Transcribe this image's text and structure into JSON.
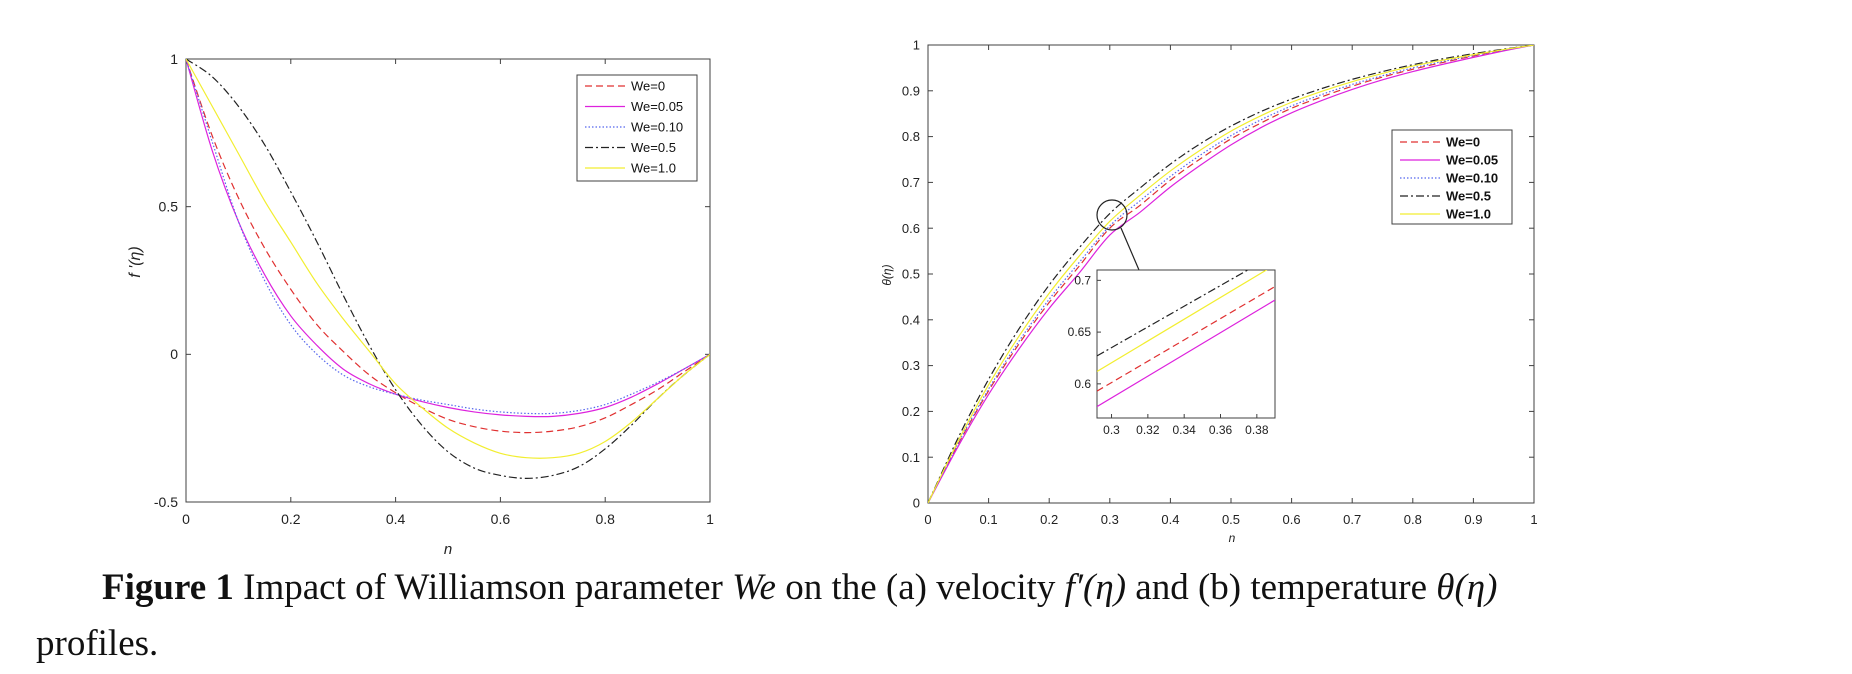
{
  "caption": {
    "bold": "Figure 1",
    "part1": " Impact of Williamson parameter ",
    "param": "We",
    "part2": " on the (a) velocity  ",
    "sym1": "f′(η)",
    "part3": " and (b) temperature ",
    "sym2": "θ(η)",
    "part4": "",
    "line2": "profiles."
  },
  "chart_data": [
    {
      "type": "line",
      "ylabel": "f '(η)",
      "xlabel": "n",
      "xlim": [
        0,
        1
      ],
      "ylim": [
        -0.5,
        1
      ],
      "xticks": [
        "0",
        "0.2",
        "0.4",
        "0.6",
        "0.8",
        "1"
      ],
      "yticks": [
        "-0.5",
        "0",
        "0.5",
        "1"
      ],
      "legend_position": "top-right",
      "series": [
        {
          "name": "We=0",
          "color": "#e03030",
          "style": "dashed",
          "x": [
            0,
            0.05,
            0.1,
            0.15,
            0.2,
            0.25,
            0.3,
            0.35,
            0.4,
            0.45,
            0.5,
            0.55,
            0.6,
            0.65,
            0.7,
            0.75,
            0.8,
            0.85,
            0.9,
            0.95,
            1
          ],
          "y": [
            1,
            0.74,
            0.53,
            0.36,
            0.22,
            0.1,
            0.01,
            -0.07,
            -0.13,
            -0.18,
            -0.22,
            -0.245,
            -0.26,
            -0.265,
            -0.26,
            -0.245,
            -0.215,
            -0.17,
            -0.12,
            -0.06,
            0
          ]
        },
        {
          "name": "We=0.05",
          "color": "#dd22dd",
          "style": "solid",
          "x": [
            0,
            0.05,
            0.1,
            0.15,
            0.2,
            0.25,
            0.3,
            0.35,
            0.4,
            0.45,
            0.5,
            0.55,
            0.6,
            0.65,
            0.7,
            0.75,
            0.8,
            0.85,
            0.9,
            0.95,
            1
          ],
          "y": [
            1,
            0.69,
            0.45,
            0.27,
            0.13,
            0.03,
            -0.05,
            -0.1,
            -0.135,
            -0.16,
            -0.18,
            -0.195,
            -0.205,
            -0.21,
            -0.21,
            -0.2,
            -0.18,
            -0.145,
            -0.1,
            -0.05,
            0
          ]
        },
        {
          "name": "We=0.10",
          "color": "#5566ee",
          "style": "dotted",
          "x": [
            0,
            0.05,
            0.1,
            0.15,
            0.2,
            0.25,
            0.3,
            0.35,
            0.4,
            0.45,
            0.5,
            0.55,
            0.6,
            0.65,
            0.7,
            0.75,
            0.8,
            0.85,
            0.9,
            0.95,
            1
          ],
          "y": [
            1,
            0.72,
            0.45,
            0.25,
            0.1,
            0.0,
            -0.07,
            -0.11,
            -0.135,
            -0.155,
            -0.17,
            -0.185,
            -0.195,
            -0.2,
            -0.2,
            -0.19,
            -0.17,
            -0.135,
            -0.095,
            -0.05,
            0
          ]
        },
        {
          "name": "We=0.5",
          "color": "#222222",
          "style": "dashdot",
          "x": [
            0,
            0.05,
            0.1,
            0.15,
            0.2,
            0.25,
            0.3,
            0.35,
            0.4,
            0.45,
            0.5,
            0.55,
            0.6,
            0.65,
            0.7,
            0.75,
            0.8,
            0.85,
            0.9,
            0.95,
            1
          ],
          "y": [
            1,
            0.94,
            0.84,
            0.71,
            0.55,
            0.38,
            0.2,
            0.03,
            -0.12,
            -0.24,
            -0.33,
            -0.385,
            -0.41,
            -0.42,
            -0.41,
            -0.38,
            -0.32,
            -0.24,
            -0.15,
            -0.07,
            0
          ]
        },
        {
          "name": "We=1.0",
          "color": "#f2ee30",
          "style": "solid",
          "x": [
            0,
            0.05,
            0.1,
            0.15,
            0.2,
            0.25,
            0.3,
            0.35,
            0.4,
            0.45,
            0.5,
            0.55,
            0.6,
            0.65,
            0.7,
            0.75,
            0.8,
            0.85,
            0.9,
            0.95,
            1
          ],
          "y": [
            1,
            0.84,
            0.68,
            0.52,
            0.38,
            0.24,
            0.12,
            0.01,
            -0.1,
            -0.18,
            -0.25,
            -0.3,
            -0.335,
            -0.35,
            -0.35,
            -0.335,
            -0.295,
            -0.23,
            -0.15,
            -0.07,
            0
          ]
        }
      ]
    },
    {
      "type": "line",
      "ylabel": "θ(η)",
      "xlabel": "n",
      "xlim": [
        0,
        1
      ],
      "ylim": [
        0,
        1
      ],
      "xticks": [
        "0",
        "0.1",
        "0.2",
        "0.3",
        "0.4",
        "0.5",
        "0.6",
        "0.7",
        "0.8",
        "0.9",
        "1"
      ],
      "yticks": [
        "0",
        "0.1",
        "0.2",
        "0.3",
        "0.4",
        "0.5",
        "0.6",
        "0.7",
        "0.8",
        "0.9",
        "1"
      ],
      "legend_position": "right",
      "series": [
        {
          "name": "We=0",
          "color": "#e03030",
          "style": "dashed",
          "x": [
            0,
            0.05,
            0.1,
            0.15,
            0.2,
            0.25,
            0.3,
            0.35,
            0.4,
            0.45,
            0.5,
            0.55,
            0.6,
            0.65,
            0.7,
            0.75,
            0.8,
            0.85,
            0.9,
            0.95,
            1
          ],
          "y": [
            0,
            0.129,
            0.245,
            0.347,
            0.438,
            0.518,
            0.6,
            0.65,
            0.705,
            0.752,
            0.795,
            0.83,
            0.862,
            0.887,
            0.91,
            0.93,
            0.947,
            0.962,
            0.976,
            0.989,
            1
          ]
        },
        {
          "name": "We=0.05",
          "color": "#dd22dd",
          "style": "solid",
          "x": [
            0,
            0.05,
            0.1,
            0.15,
            0.2,
            0.25,
            0.3,
            0.35,
            0.4,
            0.45,
            0.5,
            0.55,
            0.6,
            0.65,
            0.7,
            0.75,
            0.8,
            0.85,
            0.9,
            0.95,
            1
          ],
          "y": [
            0,
            0.124,
            0.237,
            0.336,
            0.425,
            0.503,
            0.585,
            0.635,
            0.69,
            0.738,
            0.782,
            0.82,
            0.852,
            0.879,
            0.903,
            0.924,
            0.942,
            0.958,
            0.973,
            0.987,
            1
          ]
        },
        {
          "name": "We=0.10",
          "color": "#5566ee",
          "style": "dotted",
          "x": [
            0,
            0.05,
            0.1,
            0.15,
            0.2,
            0.25,
            0.3,
            0.35,
            0.4,
            0.45,
            0.5,
            0.55,
            0.6,
            0.65,
            0.7,
            0.75,
            0.8,
            0.85,
            0.9,
            0.95,
            1
          ],
          "y": [
            0,
            0.131,
            0.249,
            0.353,
            0.445,
            0.526,
            0.605,
            0.66,
            0.713,
            0.76,
            0.802,
            0.837,
            0.867,
            0.892,
            0.914,
            0.933,
            0.95,
            0.964,
            0.977,
            0.989,
            1
          ]
        },
        {
          "name": "We=0.5",
          "color": "#222222",
          "style": "dashdot",
          "x": [
            0,
            0.05,
            0.1,
            0.15,
            0.2,
            0.25,
            0.3,
            0.35,
            0.4,
            0.45,
            0.5,
            0.55,
            0.6,
            0.65,
            0.7,
            0.75,
            0.8,
            0.85,
            0.9,
            0.95,
            1
          ],
          "y": [
            0,
            0.143,
            0.27,
            0.38,
            0.476,
            0.558,
            0.632,
            0.688,
            0.74,
            0.785,
            0.823,
            0.855,
            0.882,
            0.905,
            0.925,
            0.942,
            0.957,
            0.97,
            0.981,
            0.991,
            1
          ]
        },
        {
          "name": "We=1.0",
          "color": "#f2ee30",
          "style": "solid",
          "x": [
            0,
            0.05,
            0.1,
            0.15,
            0.2,
            0.25,
            0.3,
            0.35,
            0.4,
            0.45,
            0.5,
            0.55,
            0.6,
            0.65,
            0.7,
            0.75,
            0.8,
            0.85,
            0.9,
            0.95,
            1
          ],
          "y": [
            0,
            0.136,
            0.258,
            0.364,
            0.458,
            0.54,
            0.615,
            0.672,
            0.725,
            0.771,
            0.812,
            0.846,
            0.875,
            0.899,
            0.92,
            0.938,
            0.954,
            0.967,
            0.979,
            0.99,
            1
          ]
        }
      ],
      "inset": {
        "xlim": [
          0.292,
          0.39
        ],
        "ylim": [
          0.567,
          0.71
        ],
        "xticks": [
          "0.3",
          "0.32",
          "0.34",
          "0.36",
          "0.38"
        ],
        "yticks": [
          "0.6",
          "0.65",
          "0.7"
        ],
        "series": [
          {
            "name": "We=0",
            "color": "#e03030",
            "style": "dashed",
            "x": [
              0.292,
              0.39
            ],
            "y": [
              0.593,
              0.694
            ]
          },
          {
            "name": "We=0.05",
            "color": "#dd22dd",
            "style": "solid",
            "x": [
              0.292,
              0.39
            ],
            "y": [
              0.578,
              0.681
            ]
          },
          {
            "name": "We=0.5",
            "color": "#222222",
            "style": "dashdot",
            "x": [
              0.292,
              0.39
            ],
            "y": [
              0.627,
              0.725
            ]
          },
          {
            "name": "We=1.0",
            "color": "#f2ee30",
            "style": "solid",
            "x": [
              0.292,
              0.39
            ],
            "y": [
              0.612,
              0.715
            ]
          }
        ]
      }
    }
  ]
}
